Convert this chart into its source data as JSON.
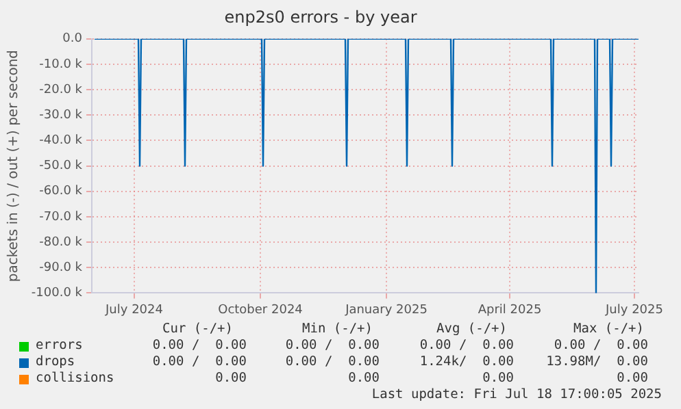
{
  "chart_data": {
    "type": "line",
    "title": "enp2s0 errors - by year",
    "ylabel": "packets in (-) / out (+) per second",
    "xlim": [
      "2024-05-31",
      "2025-07-04"
    ],
    "xticks": [
      {
        "value": "2024-07-01",
        "label": "July 2024"
      },
      {
        "value": "2024-10-01",
        "label": "October 2024"
      },
      {
        "value": "2025-01-01",
        "label": "January 2025"
      },
      {
        "value": "2025-04-01",
        "label": "April 2025"
      },
      {
        "value": "2025-07-01",
        "label": "July 2025"
      }
    ],
    "ylim": [
      -100000,
      0
    ],
    "yticks": [
      {
        "value": 0,
        "label": "0.0"
      },
      {
        "value": -10000,
        "label": "-10.0 k"
      },
      {
        "value": -20000,
        "label": "-20.0 k"
      },
      {
        "value": -30000,
        "label": "-30.0 k"
      },
      {
        "value": -40000,
        "label": "-40.0 k"
      },
      {
        "value": -50000,
        "label": "-50.0 k"
      },
      {
        "value": -60000,
        "label": "-60.0 k"
      },
      {
        "value": -70000,
        "label": "-70.0 k"
      },
      {
        "value": -80000,
        "label": "-80.0 k"
      },
      {
        "value": -90000,
        "label": "-90.0 k"
      },
      {
        "value": -100000,
        "label": "-100.0 k"
      }
    ],
    "grid": true,
    "legend": "bottom",
    "marker": "none",
    "line_style": "solid",
    "series": [
      {
        "name": "errors",
        "color": "#00cc00"
      },
      {
        "name": "collisions",
        "color": "#ff8000"
      },
      {
        "name": "drops",
        "color": "#0066b3",
        "x": [
          "2024-06-02",
          "2024-07-04",
          "2024-07-05",
          "2024-07-06",
          "2024-08-06",
          "2024-08-07",
          "2024-08-08",
          "2024-10-02",
          "2024-10-03",
          "2024-10-04",
          "2024-12-02",
          "2024-12-03",
          "2024-12-04",
          "2025-01-15",
          "2025-01-16",
          "2025-01-17",
          "2025-02-17",
          "2025-02-18",
          "2025-02-19",
          "2025-05-01",
          "2025-05-02",
          "2025-05-03",
          "2025-06-02",
          "2025-06-03",
          "2025-06-04",
          "2025-06-13",
          "2025-06-14",
          "2025-06-15",
          "2025-07-04"
        ],
        "values": [
          0,
          0,
          -50000,
          0,
          0,
          -50000,
          0,
          0,
          -50000,
          0,
          0,
          -50000,
          0,
          0,
          -50000,
          0,
          0,
          -50000,
          0,
          0,
          -50000,
          0,
          0,
          -100000,
          0,
          0,
          -50000,
          0,
          0
        ]
      }
    ],
    "annotations": [
      "Cur (-/+)",
      "Min (-/+)",
      "Avg (-/+)",
      "Max (-/+)",
      "0.00 /  0.00",
      "0.00 /  0.00",
      "0.00 /  0.00",
      "0.00 /  0.00",
      "0.00 /  0.00",
      "0.00 /  0.00",
      "1.24k/  0.00",
      "13.98M/  0.00",
      "0.00",
      "0.00",
      "0.00",
      "0.00",
      "Last update: Fri Jul 18 17:00:05 2025"
    ]
  }
}
